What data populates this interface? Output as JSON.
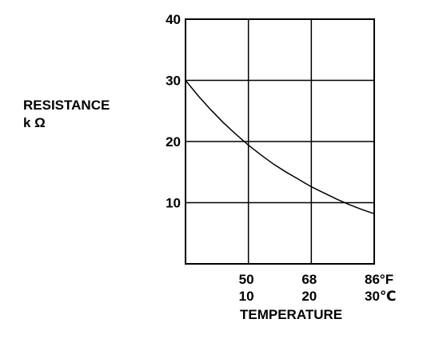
{
  "chart_data": {
    "type": "line",
    "title": "",
    "ylabel": "RESISTANCE",
    "yunit": "k Ω",
    "xlabel": "TEMPERATURE",
    "ylim": [
      0,
      40
    ],
    "xlim": [
      0,
      30
    ],
    "yticks": [
      "10",
      "20",
      "30",
      "40"
    ],
    "xticks_f": [
      "50",
      "68",
      "86°F"
    ],
    "xticks_c": [
      "10",
      "20",
      "30℃"
    ],
    "grid": true,
    "series": [
      {
        "x": [
          0,
          2,
          4,
          6,
          8,
          10,
          12,
          14,
          16,
          18,
          20,
          22,
          24,
          26,
          28,
          30
        ],
        "y": [
          30.0,
          27.5,
          25.2,
          23.1,
          21.2,
          19.4,
          17.8,
          16.3,
          15.0,
          13.8,
          12.6,
          11.6,
          10.6,
          9.7,
          8.9,
          8.2
        ]
      }
    ]
  },
  "colors": {
    "line": "#000000",
    "grid": "#000000",
    "background": "#ffffff"
  }
}
